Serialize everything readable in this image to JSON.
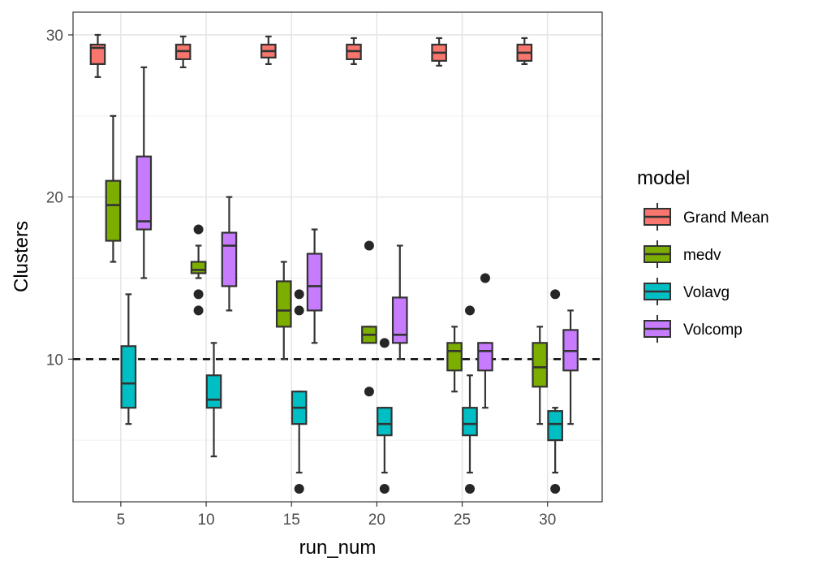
{
  "chart_data": {
    "type": "boxplot",
    "title": "",
    "xlabel": "run_num",
    "ylabel": "Clusters",
    "categories": [
      "5",
      "10",
      "15",
      "20",
      "25",
      "30"
    ],
    "x_values": [
      5,
      10,
      15,
      20,
      25,
      30
    ],
    "xlim": [
      2.2,
      33.2
    ],
    "ylim": [
      1.2,
      31.4
    ],
    "y_ticks": [
      10,
      20,
      30
    ],
    "x_ticks": [
      5,
      10,
      15,
      20,
      25,
      30
    ],
    "reference_line": {
      "y": 10,
      "style": "dashed"
    },
    "grid": true,
    "legend_title": "model",
    "legend_position": "right",
    "series": [
      {
        "name": "Grand Mean",
        "color": "#F8766D",
        "boxes": [
          {
            "x": 5,
            "min": 27.4,
            "q1": 28.2,
            "median": 29.2,
            "q3": 29.4,
            "max": 30.0,
            "outliers": []
          },
          {
            "x": 10,
            "min": 28.0,
            "q1": 28.5,
            "median": 29.0,
            "q3": 29.4,
            "max": 29.9,
            "outliers": []
          },
          {
            "x": 15,
            "min": 28.2,
            "q1": 28.6,
            "median": 29.0,
            "q3": 29.4,
            "max": 29.9,
            "outliers": []
          },
          {
            "x": 20,
            "min": 28.2,
            "q1": 28.5,
            "median": 29.0,
            "q3": 29.4,
            "max": 29.8,
            "outliers": []
          },
          {
            "x": 25,
            "min": 28.1,
            "q1": 28.4,
            "median": 28.9,
            "q3": 29.4,
            "max": 29.8,
            "outliers": []
          },
          {
            "x": 30,
            "min": 28.2,
            "q1": 28.4,
            "median": 28.9,
            "q3": 29.4,
            "max": 29.8,
            "outliers": []
          }
        ]
      },
      {
        "name": "medv",
        "color": "#7CAE00",
        "boxes": [
          {
            "x": 5,
            "min": 16.0,
            "q1": 17.3,
            "median": 19.5,
            "q3": 21.0,
            "max": 25.0,
            "outliers": []
          },
          {
            "x": 10,
            "min": 15.0,
            "q1": 15.3,
            "median": 15.5,
            "q3": 16.0,
            "max": 17.0,
            "outliers": [
              18.0,
              14.0,
              13.0
            ]
          },
          {
            "x": 15,
            "min": 10.0,
            "q1": 12.0,
            "median": 13.0,
            "q3": 14.8,
            "max": 16.0,
            "outliers": []
          },
          {
            "x": 20,
            "min": 11.0,
            "q1": 11.0,
            "median": 11.5,
            "q3": 12.0,
            "max": 12.0,
            "outliers": [
              17.0,
              8.0
            ]
          },
          {
            "x": 25,
            "min": 8.0,
            "q1": 9.3,
            "median": 10.5,
            "q3": 11.0,
            "max": 12.0,
            "outliers": []
          },
          {
            "x": 30,
            "min": 6.0,
            "q1": 8.3,
            "median": 9.5,
            "q3": 11.0,
            "max": 12.0,
            "outliers": []
          }
        ]
      },
      {
        "name": "Volavg",
        "color": "#00BFC4",
        "boxes": [
          {
            "x": 5,
            "min": 6.0,
            "q1": 7.0,
            "median": 8.5,
            "q3": 10.8,
            "max": 14.0,
            "outliers": []
          },
          {
            "x": 10,
            "min": 4.0,
            "q1": 7.0,
            "median": 7.5,
            "q3": 9.0,
            "max": 11.0,
            "outliers": []
          },
          {
            "x": 15,
            "min": 3.0,
            "q1": 6.0,
            "median": 7.0,
            "q3": 8.0,
            "max": 8.0,
            "outliers": [
              14.0,
              13.0,
              2.0
            ]
          },
          {
            "x": 20,
            "min": 3.0,
            "q1": 5.3,
            "median": 6.0,
            "q3": 7.0,
            "max": 7.0,
            "outliers": [
              11.0,
              2.0
            ]
          },
          {
            "x": 25,
            "min": 3.0,
            "q1": 5.3,
            "median": 6.0,
            "q3": 7.0,
            "max": 9.0,
            "outliers": [
              13.0,
              2.0
            ]
          },
          {
            "x": 30,
            "min": 3.0,
            "q1": 5.0,
            "median": 6.0,
            "q3": 6.8,
            "max": 7.0,
            "outliers": [
              14.0,
              2.0
            ]
          }
        ]
      },
      {
        "name": "Volcomp",
        "color": "#C77CFF",
        "boxes": [
          {
            "x": 5,
            "min": 15.0,
            "q1": 18.0,
            "median": 18.5,
            "q3": 22.5,
            "max": 28.0,
            "outliers": []
          },
          {
            "x": 10,
            "min": 13.0,
            "q1": 14.5,
            "median": 17.0,
            "q3": 17.8,
            "max": 20.0,
            "outliers": []
          },
          {
            "x": 15,
            "min": 11.0,
            "q1": 13.0,
            "median": 14.5,
            "q3": 16.5,
            "max": 18.0,
            "outliers": []
          },
          {
            "x": 20,
            "min": 10.0,
            "q1": 11.0,
            "median": 11.5,
            "q3": 13.8,
            "max": 17.0,
            "outliers": []
          },
          {
            "x": 25,
            "min": 7.0,
            "q1": 9.3,
            "median": 10.5,
            "q3": 11.0,
            "max": 11.0,
            "outliers": [
              15.0
            ]
          },
          {
            "x": 30,
            "min": 6.0,
            "q1": 9.3,
            "median": 10.5,
            "q3": 11.8,
            "max": 13.0,
            "outliers": []
          }
        ]
      }
    ]
  }
}
